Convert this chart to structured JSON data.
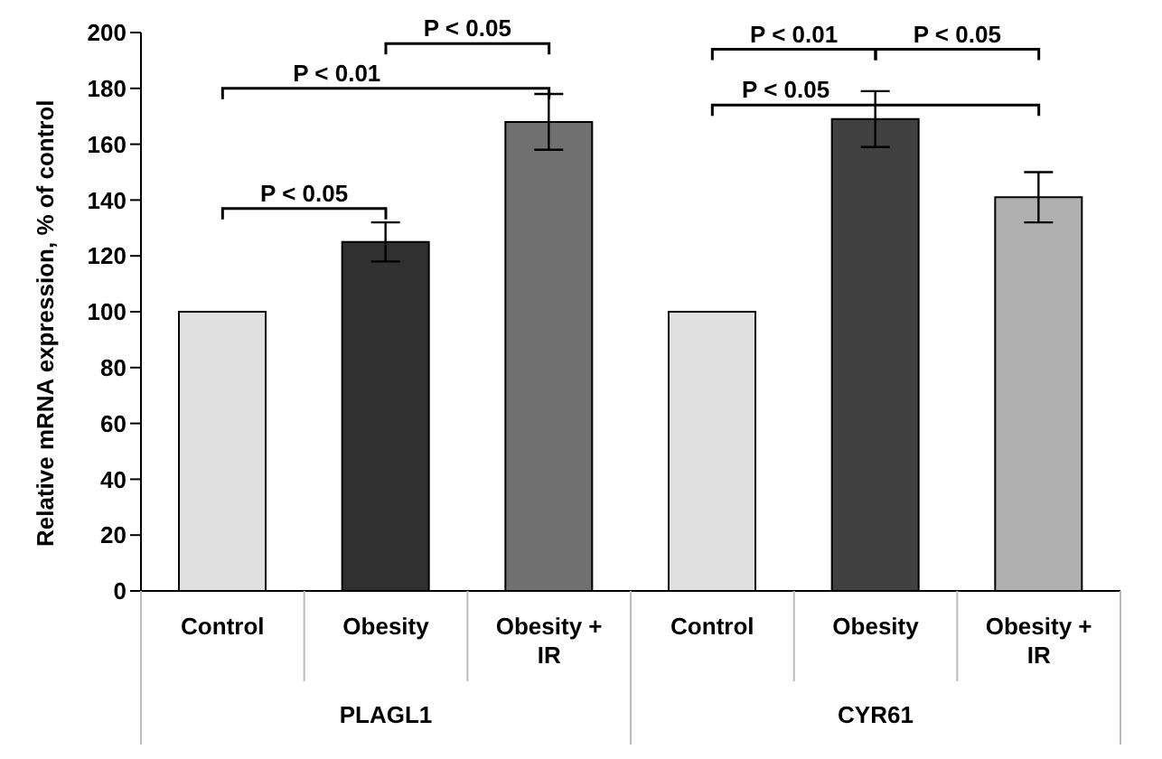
{
  "chart_data": {
    "type": "bar",
    "ylabel": "Relative mRNA expression, % of control",
    "categories": [
      "Control",
      "Obesity",
      "Obesity + IR",
      "Control",
      "Obesity",
      "Obesity + IR"
    ],
    "values": [
      100,
      125,
      168,
      100,
      169,
      141
    ],
    "errors": [
      null,
      7,
      10,
      null,
      10,
      9
    ],
    "colors": [
      "#e0e0e0",
      "#303030",
      "#707070",
      "#e0e0e0",
      "#404040",
      "#b0b0b0"
    ],
    "ylim": [
      0,
      200
    ],
    "yticks": [
      0,
      20,
      40,
      60,
      80,
      100,
      120,
      140,
      160,
      180,
      200
    ],
    "grid": false,
    "legend": false,
    "annotations": [
      "P < 0.01",
      "P < 0.05",
      "P < 0.05",
      "P < 0.01",
      "P < 0.05",
      "P < 0.05",
      "PLAGL1",
      "CYR61"
    ]
  }
}
